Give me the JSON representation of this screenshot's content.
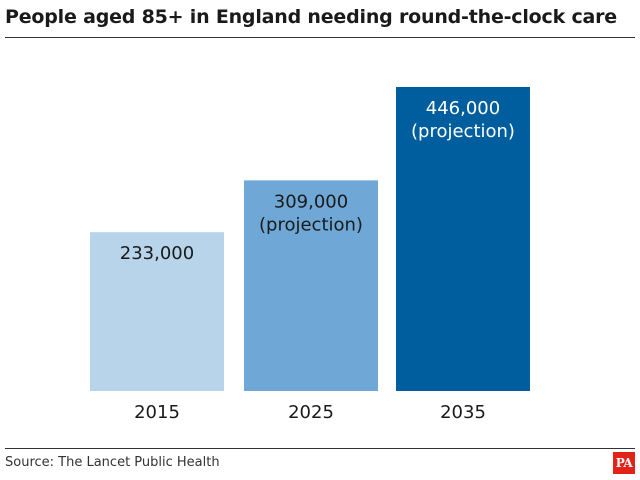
{
  "title": "People aged 85+ in England needing round-the-clock care",
  "source": "Source: The Lancet Public Health",
  "logo": "PA",
  "chart_data": {
    "type": "bar",
    "categories": [
      "2015",
      "2025",
      "2035"
    ],
    "values": [
      233000,
      309000,
      446000
    ],
    "value_labels": [
      "233,000",
      "309,000",
      "446,000"
    ],
    "annotations": [
      "",
      "(projection)",
      "(projection)"
    ],
    "colors": [
      "#b8d4ea",
      "#6fa8d6",
      "#005e9e"
    ],
    "label_colors": [
      "#1a1a1a",
      "#1a1a1a",
      "#ffffff"
    ],
    "title": "People aged 85+ in England needing round-the-clock care",
    "xlabel": "",
    "ylabel": "",
    "ylim": [
      0,
      446000
    ],
    "grid": false,
    "legend": "none"
  }
}
